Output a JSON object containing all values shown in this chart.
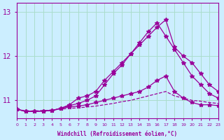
{
  "xlabel": "Windchill (Refroidissement éolien,°C)",
  "background_color": "#cceeff",
  "grid_color": "#aaddcc",
  "line_color": "#990099",
  "x_ticks": [
    0,
    1,
    2,
    3,
    4,
    5,
    6,
    7,
    8,
    9,
    10,
    11,
    12,
    13,
    14,
    15,
    16,
    17,
    18,
    19,
    20,
    21,
    22,
    23
  ],
  "y_ticks": [
    11,
    12,
    13
  ],
  "ylim": [
    10.6,
    13.2
  ],
  "xlim": [
    0,
    23
  ],
  "series": {
    "line1": [
      10.8,
      10.75,
      10.75,
      10.76,
      10.77,
      10.82,
      10.9,
      11.05,
      11.1,
      11.2,
      11.45,
      11.65,
      11.85,
      12.05,
      12.25,
      12.45,
      12.65,
      12.82,
      12.2,
      12.0,
      11.85,
      11.6,
      11.35,
      11.2
    ],
    "line2": [
      10.8,
      10.75,
      10.75,
      10.76,
      10.77,
      10.82,
      10.88,
      10.93,
      11.0,
      11.1,
      11.35,
      11.6,
      11.8,
      12.05,
      12.3,
      12.55,
      12.75,
      12.45,
      12.15,
      11.85,
      11.55,
      11.35,
      11.15,
      11.05
    ],
    "line3": [
      10.8,
      10.75,
      10.75,
      10.76,
      10.77,
      10.82,
      10.85,
      10.87,
      10.9,
      10.95,
      11.0,
      11.05,
      11.1,
      11.15,
      11.2,
      11.3,
      11.45,
      11.55,
      11.2,
      11.05,
      10.95,
      10.9,
      10.9,
      10.88
    ],
    "line4_dashed": [
      10.8,
      10.76,
      10.76,
      10.77,
      10.78,
      10.8,
      10.82,
      10.83,
      10.85,
      10.87,
      10.9,
      10.93,
      10.97,
      11.0,
      11.05,
      11.1,
      11.15,
      11.2,
      11.1,
      11.05,
      11.0,
      10.98,
      10.95,
      10.93
    ]
  }
}
